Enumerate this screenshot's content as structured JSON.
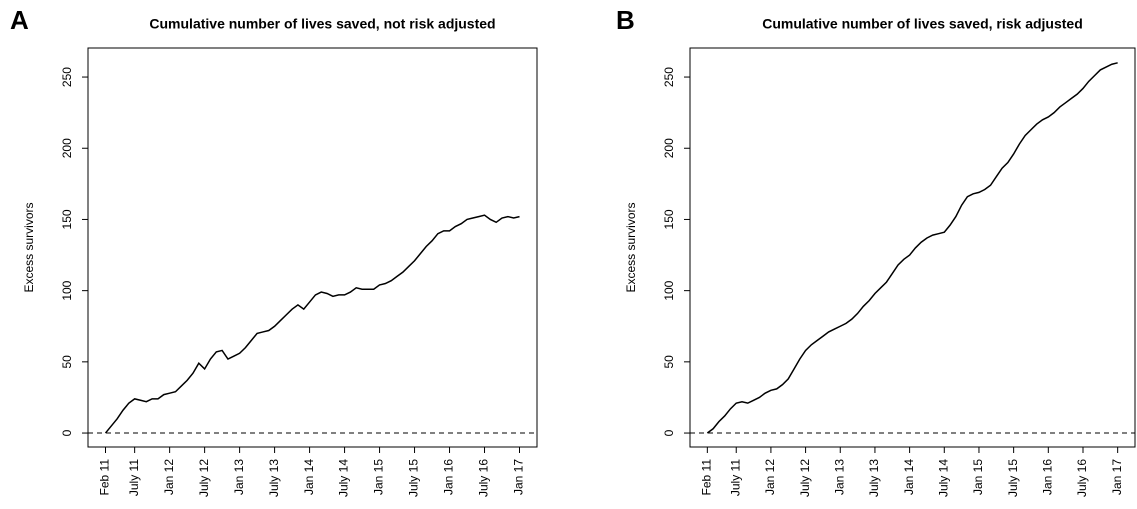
{
  "chart_data": [
    {
      "type": "line",
      "panel_label": "A",
      "title": "Cumulative number of lives saved, not risk adjusted",
      "y_label": "Excess survivors",
      "x": [
        "2011-02",
        "2011-03",
        "2011-04",
        "2011-05",
        "2011-06",
        "2011-07",
        "2011-08",
        "2011-09",
        "2011-10",
        "2011-11",
        "2011-12",
        "2012-01",
        "2012-02",
        "2012-03",
        "2012-04",
        "2012-05",
        "2012-06",
        "2012-07",
        "2012-08",
        "2012-09",
        "2012-10",
        "2012-11",
        "2012-12",
        "2013-01",
        "2013-02",
        "2013-03",
        "2013-04",
        "2013-05",
        "2013-06",
        "2013-07",
        "2013-08",
        "2013-09",
        "2013-10",
        "2013-11",
        "2013-12",
        "2014-01",
        "2014-02",
        "2014-03",
        "2014-04",
        "2014-05",
        "2014-06",
        "2014-07",
        "2014-08",
        "2014-09",
        "2014-10",
        "2014-11",
        "2014-12",
        "2015-01",
        "2015-02",
        "2015-03",
        "2015-04",
        "2015-05",
        "2015-06",
        "2015-07",
        "2015-08",
        "2015-09",
        "2015-10",
        "2015-11",
        "2015-12",
        "2016-01",
        "2016-02",
        "2016-03",
        "2016-04",
        "2016-05",
        "2016-06",
        "2016-07",
        "2016-08",
        "2016-09",
        "2016-10",
        "2016-11",
        "2016-12",
        "2017-01"
      ],
      "values": [
        0,
        5,
        10,
        16,
        21,
        24,
        23,
        22,
        24,
        24,
        27,
        28,
        29,
        33,
        37,
        42,
        49,
        45,
        52,
        57,
        58,
        52,
        54,
        56,
        60,
        65,
        70,
        71,
        72,
        75,
        79,
        83,
        87,
        90,
        87,
        92,
        97,
        99,
        98,
        96,
        97,
        97,
        99,
        102,
        101,
        101,
        101,
        104,
        105,
        107,
        110,
        113,
        117,
        121,
        126,
        131,
        135,
        140,
        142,
        142,
        145,
        147,
        150,
        151,
        152,
        153,
        150,
        148,
        151,
        152,
        151,
        152
      ],
      "color": "#000000",
      "xlim": [
        "2010-11",
        "2017-04"
      ],
      "ylim": [
        -9.8,
        270.4
      ],
      "xticks": [
        {
          "value": "2011-02",
          "label": "Feb 11"
        },
        {
          "value": "2011-07",
          "label": "July 11"
        },
        {
          "value": "2012-01",
          "label": "Jan 12"
        },
        {
          "value": "2012-07",
          "label": "July 12"
        },
        {
          "value": "2013-01",
          "label": "Jan 13"
        },
        {
          "value": "2013-07",
          "label": "July 13"
        },
        {
          "value": "2014-01",
          "label": "Jan 14"
        },
        {
          "value": "2014-07",
          "label": "July 14"
        },
        {
          "value": "2015-01",
          "label": "Jan 15"
        },
        {
          "value": "2015-07",
          "label": "July 15"
        },
        {
          "value": "2016-01",
          "label": "Jan 16"
        },
        {
          "value": "2016-07",
          "label": "July 16"
        },
        {
          "value": "2017-01",
          "label": "Jan 17"
        }
      ],
      "yticks": [
        0,
        50,
        100,
        150,
        200,
        250
      ],
      "reference_line": 0
    },
    {
      "type": "line",
      "panel_label": "B",
      "title": "Cumulative number of lives saved, risk adjusted",
      "y_label": "Excess survivors",
      "x": [
        "2011-02",
        "2011-03",
        "2011-04",
        "2011-05",
        "2011-06",
        "2011-07",
        "2011-08",
        "2011-09",
        "2011-10",
        "2011-11",
        "2011-12",
        "2012-01",
        "2012-02",
        "2012-03",
        "2012-04",
        "2012-05",
        "2012-06",
        "2012-07",
        "2012-08",
        "2012-09",
        "2012-10",
        "2012-11",
        "2012-12",
        "2013-01",
        "2013-02",
        "2013-03",
        "2013-04",
        "2013-05",
        "2013-06",
        "2013-07",
        "2013-08",
        "2013-09",
        "2013-10",
        "2013-11",
        "2013-12",
        "2014-01",
        "2014-02",
        "2014-03",
        "2014-04",
        "2014-05",
        "2014-06",
        "2014-07",
        "2014-08",
        "2014-09",
        "2014-10",
        "2014-11",
        "2014-12",
        "2015-01",
        "2015-02",
        "2015-03",
        "2015-04",
        "2015-05",
        "2015-06",
        "2015-07",
        "2015-08",
        "2015-09",
        "2015-10",
        "2015-11",
        "2015-12",
        "2016-01",
        "2016-02",
        "2016-03",
        "2016-04",
        "2016-05",
        "2016-06",
        "2016-07",
        "2016-08",
        "2016-09",
        "2016-10",
        "2016-11",
        "2016-12",
        "2017-01"
      ],
      "values": [
        0,
        3,
        8,
        12,
        17,
        21,
        22,
        21,
        23,
        25,
        28,
        30,
        31,
        34,
        38,
        45,
        52,
        58,
        62,
        65,
        68,
        71,
        73,
        75,
        77,
        80,
        84,
        89,
        93,
        98,
        102,
        106,
        112,
        118,
        122,
        125,
        130,
        134,
        137,
        139,
        140,
        141,
        146,
        152,
        160,
        166,
        168,
        169,
        171,
        174,
        180,
        186,
        190,
        196,
        203,
        209,
        213,
        217,
        220,
        222,
        225,
        229,
        232,
        235,
        238,
        242,
        247,
        251,
        255,
        257,
        259,
        260
      ],
      "color": "#000000",
      "xlim": [
        "2010-11",
        "2017-04"
      ],
      "ylim": [
        -9.8,
        270.4
      ],
      "xticks": [
        {
          "value": "2011-02",
          "label": "Feb 11"
        },
        {
          "value": "2011-07",
          "label": "July 11"
        },
        {
          "value": "2012-01",
          "label": "Jan 12"
        },
        {
          "value": "2012-07",
          "label": "July 12"
        },
        {
          "value": "2013-01",
          "label": "Jan 13"
        },
        {
          "value": "2013-07",
          "label": "July 13"
        },
        {
          "value": "2014-01",
          "label": "Jan 14"
        },
        {
          "value": "2014-07",
          "label": "July 14"
        },
        {
          "value": "2015-01",
          "label": "Jan 15"
        },
        {
          "value": "2015-07",
          "label": "July 15"
        },
        {
          "value": "2016-01",
          "label": "Jan 16"
        },
        {
          "value": "2016-07",
          "label": "July 16"
        },
        {
          "value": "2017-01",
          "label": "Jan 17"
        }
      ],
      "yticks": [
        0,
        50,
        100,
        150,
        200,
        250
      ],
      "reference_line": 0
    }
  ]
}
